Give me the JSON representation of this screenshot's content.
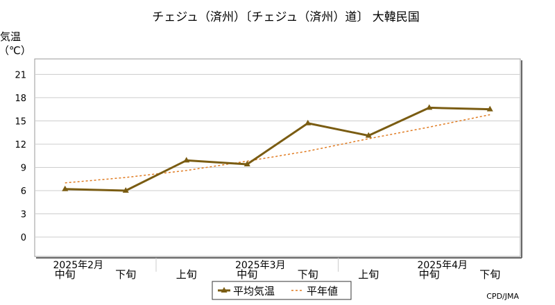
{
  "chart_data": {
    "type": "line",
    "title": "チェジュ（済州）〔チェジュ（済州）道〕 大韓民国",
    "ylabel": "気温",
    "yunit": "（℃）",
    "ylim": [
      -2.5,
      23
    ],
    "yticks": [
      0,
      3,
      6,
      9,
      12,
      15,
      18,
      21
    ],
    "grid": true,
    "categories": [
      "中旬",
      "下旬",
      "上旬",
      "中旬",
      "下旬",
      "上旬",
      "中旬",
      "下旬"
    ],
    "month_labels": [
      {
        "label": "2025年2月",
        "index": 0
      },
      {
        "label": "2025年3月",
        "index": 3
      },
      {
        "label": "2025年4月",
        "index": 6
      }
    ],
    "series": [
      {
        "name": "平均気温",
        "color": "#7a5c12",
        "style": "solid-marker",
        "values": [
          6.2,
          6.0,
          9.9,
          9.4,
          14.7,
          13.1,
          16.7,
          16.5
        ]
      },
      {
        "name": "平年値",
        "color": "#e07a1f",
        "style": "dashed",
        "values": [
          7.0,
          7.7,
          8.6,
          9.8,
          11.1,
          12.7,
          14.2,
          15.8
        ]
      }
    ],
    "legend_position": "bottom-center",
    "credit": "CPD/JMA"
  }
}
